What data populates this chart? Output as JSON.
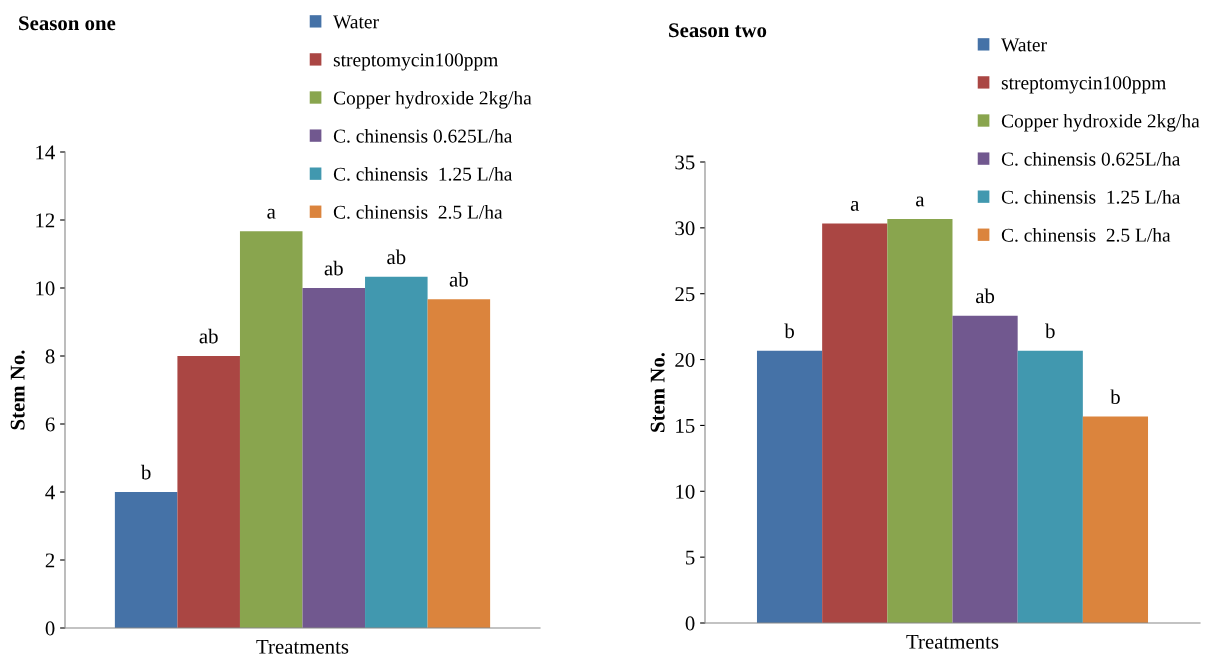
{
  "chart_data": [
    {
      "type": "bar",
      "title": "Season one",
      "ylabel": "Stem No.",
      "categories": [
        "Treatments"
      ],
      "ylim": [
        0,
        14
      ],
      "yticks": [
        0,
        2,
        4,
        6,
        8,
        10,
        12,
        14
      ],
      "grid": false,
      "legend": "top",
      "series": [
        {
          "name": "Water",
          "color": "#4572a7",
          "values": [
            4
          ],
          "value_labels": [
            "b"
          ]
        },
        {
          "name": "streptomycin100ppm",
          "color": "#aa4643",
          "values": [
            8
          ],
          "value_labels": [
            "ab"
          ]
        },
        {
          "name": "Copper hydroxide 2kg/ha",
          "color": "#89a54e",
          "values": [
            11.67
          ],
          "value_labels": [
            "a"
          ]
        },
        {
          "name": "C. chinensis 0.625L/ha",
          "color": "#71588f",
          "values": [
            10
          ],
          "value_labels": [
            "ab"
          ]
        },
        {
          "name": "C. chinensis  1.25 L/ha",
          "color": "#4198af",
          "values": [
            10.33
          ],
          "value_labels": [
            "ab"
          ]
        },
        {
          "name": "C. chinensis  2.5 L/ha",
          "color": "#db843d",
          "values": [
            9.67
          ],
          "value_labels": [
            "ab"
          ]
        }
      ]
    },
    {
      "type": "bar",
      "title": "Season two",
      "ylabel": "Stem No.",
      "categories": [
        "Treatments"
      ],
      "ylim": [
        0,
        35
      ],
      "yticks": [
        0,
        5,
        10,
        15,
        20,
        25,
        30,
        35
      ],
      "grid": false,
      "legend": "top",
      "series": [
        {
          "name": "Water",
          "color": "#4572a7",
          "values": [
            20.67
          ],
          "value_labels": [
            "b"
          ]
        },
        {
          "name": "streptomycin100ppm",
          "color": "#aa4643",
          "values": [
            30.33
          ],
          "value_labels": [
            "a"
          ]
        },
        {
          "name": "Copper hydroxide 2kg/ha",
          "color": "#89a54e",
          "values": [
            30.67
          ],
          "value_labels": [
            "a"
          ]
        },
        {
          "name": "C. chinensis 0.625L/ha",
          "color": "#71588f",
          "values": [
            23.33
          ],
          "value_labels": [
            "ab"
          ]
        },
        {
          "name": "C. chinensis  1.25 L/ha",
          "color": "#4198af",
          "values": [
            20.67
          ],
          "value_labels": [
            "b"
          ]
        },
        {
          "name": "C. chinensis  2.5 L/ha",
          "color": "#db843d",
          "values": [
            15.67
          ],
          "value_labels": [
            "b"
          ]
        }
      ]
    }
  ]
}
